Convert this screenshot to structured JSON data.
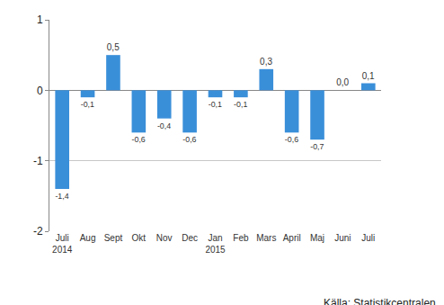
{
  "chart_data": {
    "type": "bar",
    "categories": [
      "Juli\n2014",
      "Aug",
      "Sept",
      "Okt",
      "Nov",
      "Dec",
      "Jan\n2015",
      "Feb",
      "Mars",
      "April",
      "Maj",
      "Juni",
      "Juli"
    ],
    "values": [
      -1.4,
      -0.1,
      0.5,
      -0.6,
      -0.4,
      -0.6,
      -0.1,
      -0.1,
      0.3,
      -0.6,
      -0.7,
      0.0,
      0.1
    ],
    "value_labels": [
      "-1,4",
      "-0,1",
      "0,5",
      "-0,6",
      "-0,4",
      "-0,6",
      "-0,1",
      "-0,1",
      "0,3",
      "-0,6",
      "-0,7",
      "0,0",
      "0,1"
    ],
    "data_labels": true,
    "color": "#3a8fd9",
    "ylim": [
      -2,
      1
    ],
    "yticks": [
      -2,
      -1,
      0,
      1
    ],
    "grid": true,
    "annotations": [
      {
        "text": "Källa: Statistikcentralen"
      }
    ]
  }
}
